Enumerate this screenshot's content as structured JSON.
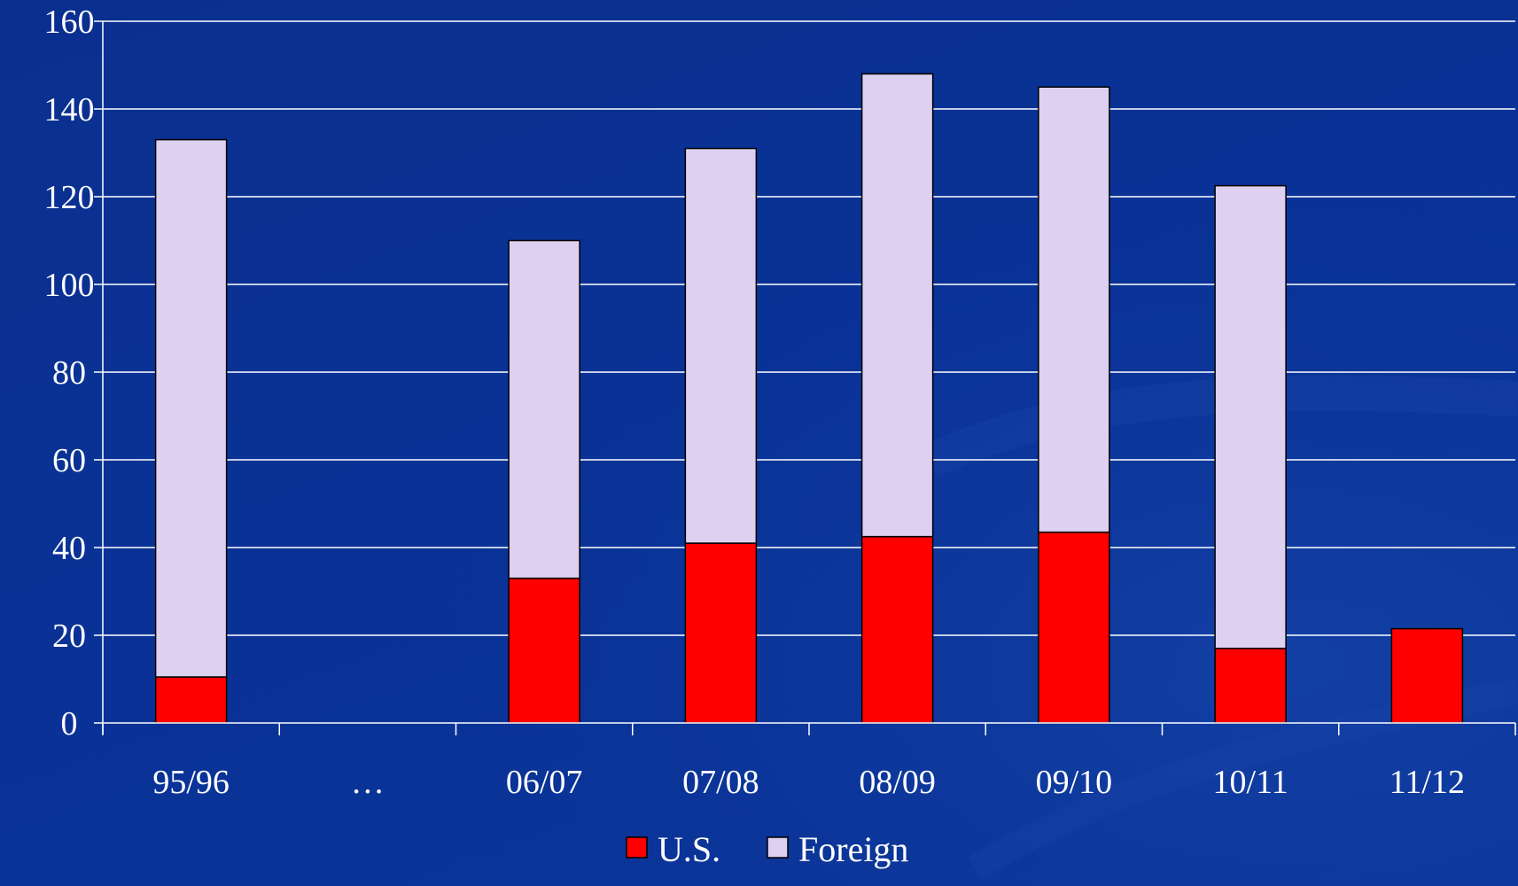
{
  "chart_data": {
    "type": "bar",
    "stacked": true,
    "categories": [
      "95/96",
      "…",
      "06/07",
      "07/08",
      "08/09",
      "09/10",
      "10/11",
      "11/12"
    ],
    "series": [
      {
        "name": "U.S.",
        "color": "#ff0000",
        "values": [
          10.5,
          null,
          33,
          41,
          42.5,
          43.5,
          17,
          21.5
        ]
      },
      {
        "name": "Foreign",
        "color": "#ddd0f0",
        "values": [
          122.5,
          null,
          77,
          90,
          105.5,
          101.5,
          105.5,
          null
        ]
      }
    ],
    "ylim": [
      0,
      160
    ],
    "yticks": [
      0,
      20,
      40,
      60,
      80,
      100,
      120,
      140,
      160
    ],
    "grid": true,
    "legend": "bottom-center",
    "title": "",
    "xlabel": "",
    "ylabel": ""
  }
}
